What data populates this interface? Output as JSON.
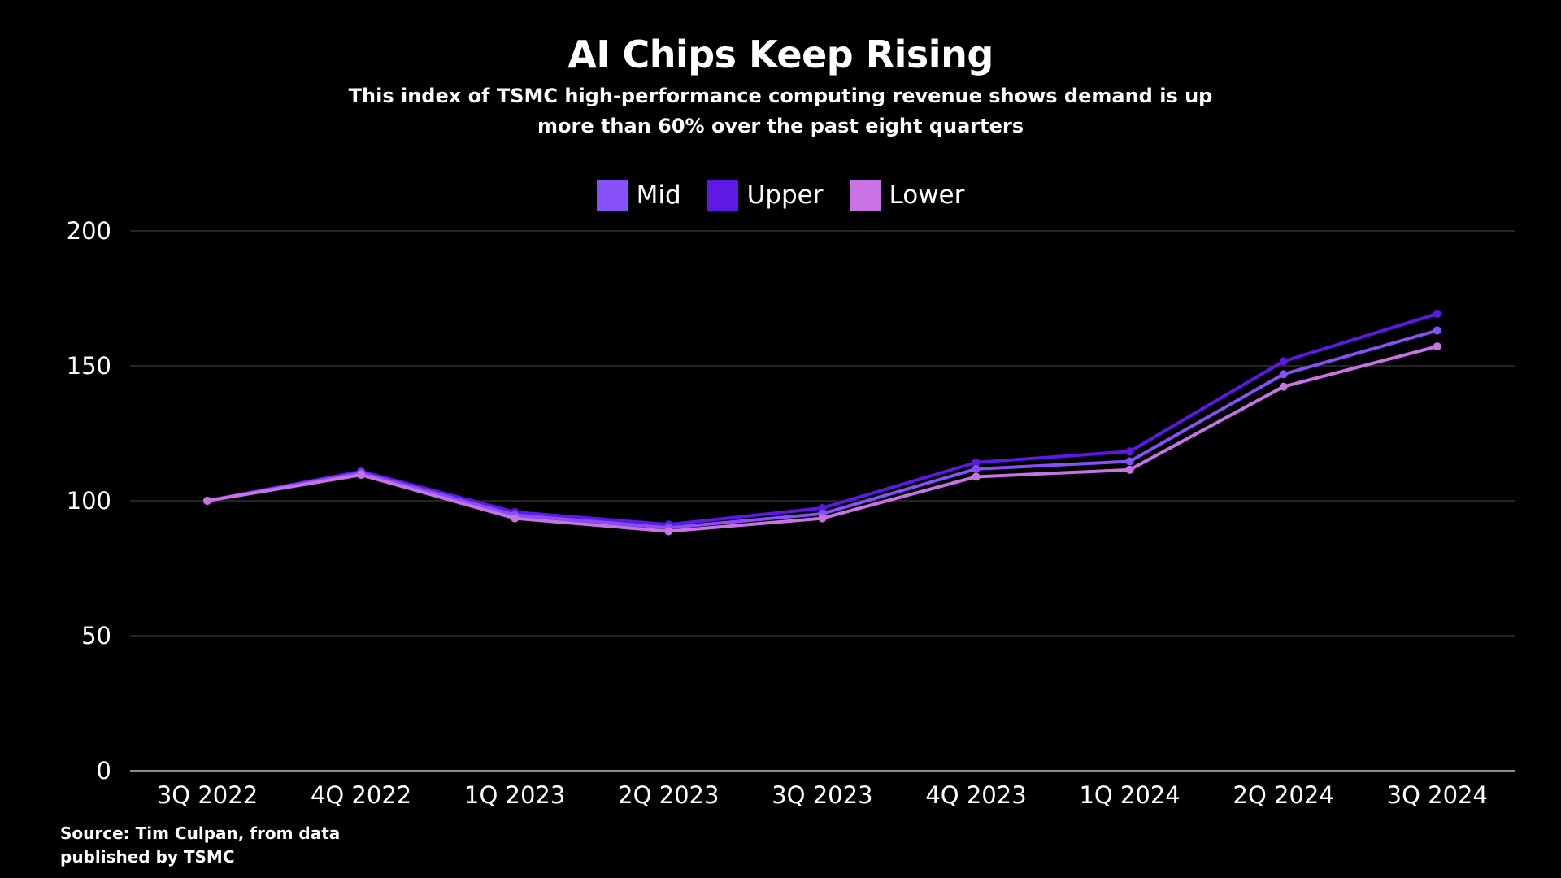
{
  "chart_data": {
    "type": "line",
    "title": "AI Chips Keep Rising",
    "subtitle_lines": [
      "This index of  TSMC high-performance computing revenue shows demand is up",
      "more than 60% over the past eight quarters"
    ],
    "categories": [
      "3Q 2022",
      "4Q 2022",
      "1Q 2023",
      "2Q 2023",
      "3Q 2023",
      "4Q 2023",
      "1Q 2024",
      "2Q 2024",
      "3Q 2024"
    ],
    "series": [
      {
        "name": "Mid",
        "color": "#8650f8",
        "values": [
          100,
          110.3,
          94.7,
          90.0,
          95.2,
          111.8,
          114.6,
          146.9,
          163.1
        ]
      },
      {
        "name": "Upper",
        "color": "#5e18e6",
        "values": [
          100,
          110.9,
          95.8,
          91.2,
          97.3,
          114.2,
          118.3,
          151.7,
          169.3
        ]
      },
      {
        "name": "Lower",
        "color": "#c872e4",
        "values": [
          100,
          109.6,
          93.5,
          88.7,
          93.5,
          108.9,
          111.5,
          142.3,
          157.2
        ]
      }
    ],
    "yticks": [
      0,
      50,
      100,
      150,
      200
    ],
    "ylim": [
      0,
      200
    ],
    "grid": true,
    "legend_position": "top-center",
    "xlabel": "",
    "ylabel": ""
  },
  "source": {
    "line1": "Source: Tim Culpan, from data",
    "line2": "published by TSMC"
  }
}
